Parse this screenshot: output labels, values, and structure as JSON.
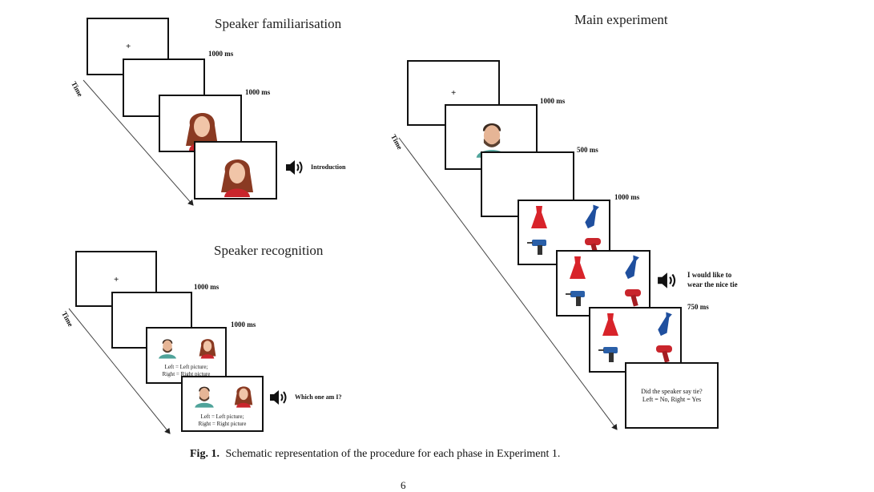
{
  "panels": {
    "familiarisation": {
      "title": "Speaker familiarisation",
      "fixation": "+",
      "timings": [
        "1000 ms",
        "1000 ms"
      ],
      "time_label": "Time",
      "audio_label": "Introduction"
    },
    "recognition": {
      "title": "Speaker recognition",
      "fixation": "+",
      "timings": [
        "1000 ms",
        "1000 ms"
      ],
      "time_label": "Time",
      "response_text_1": "Left = Left picture;",
      "response_text_2": "Right = Right picture",
      "audio_label": "Which one am I?"
    },
    "main": {
      "title": "Main experiment",
      "fixation": "+",
      "timings": [
        "1000 ms",
        "500 ms",
        "1000 ms",
        "750 ms"
      ],
      "time_label": "Time",
      "audio_line_1": "I would like to",
      "audio_line_2": "wear the nice tie",
      "question_line_1": "Did the speaker say tie?",
      "question_line_2": "Left = No, Right = Yes"
    }
  },
  "caption": {
    "label": "Fig. 1.",
    "text": "Schematic representation of the procedure for each phase in Experiment 1."
  },
  "page_number": "6",
  "colors": {
    "dress": "#d8232a",
    "tie": "#1f4f9e",
    "drill": "#2a5fa8",
    "hairdryer": "#c9252c",
    "female_hair": "#8a3a22",
    "male_shirt": "#4fa39a"
  }
}
